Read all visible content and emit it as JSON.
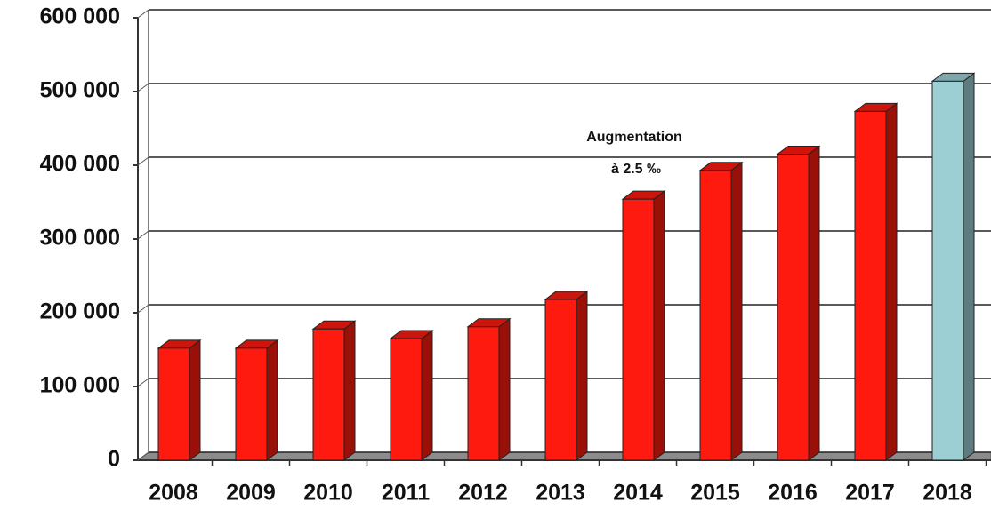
{
  "chart_data": {
    "type": "bar3d",
    "categories": [
      "2008",
      "2009",
      "2010",
      "2011",
      "2012",
      "2013",
      "2014",
      "2015",
      "2016",
      "2017",
      "2018"
    ],
    "values": [
      152000,
      152000,
      178000,
      165000,
      181000,
      218000,
      354000,
      393000,
      415000,
      473000,
      514000
    ],
    "colors": [
      "#ff1a0f",
      "#ff1a0f",
      "#ff1a0f",
      "#ff1a0f",
      "#ff1a0f",
      "#ff1a0f",
      "#ff1a0f",
      "#ff1a0f",
      "#ff1a0f",
      "#ff1a0f",
      "#9ccfd4"
    ],
    "ylim": [
      0,
      600000
    ],
    "yticks": [
      0,
      {
        "value": 100000,
        "label": "100 000"
      },
      {
        "value": 200000,
        "label": "200 000"
      },
      {
        "value": 300000,
        "label": "300 000"
      },
      {
        "value": 400000,
        "label": "400 000"
      },
      {
        "value": 500000,
        "label": "500 000"
      },
      {
        "value": 600000,
        "label": "600 000"
      }
    ],
    "grid": true,
    "annotations": [
      "Augmentation",
      "à 2.5 ‰"
    ]
  }
}
